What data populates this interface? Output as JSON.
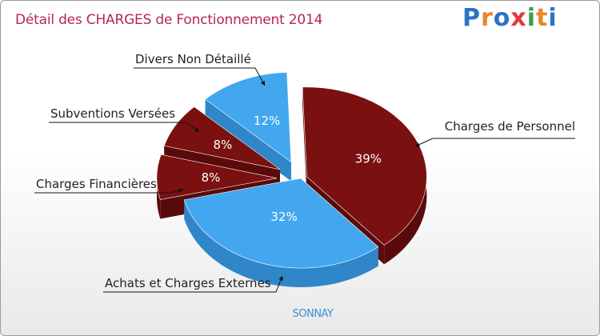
{
  "title": "Détail des CHARGES de Fonctionnement 2014",
  "logo": {
    "text": "Proxiti",
    "letters": [
      {
        "ch": "P",
        "color": "#2a73c9"
      },
      {
        "ch": "r",
        "color": "#e8862a"
      },
      {
        "ch": "o",
        "color": "#2a73c9"
      },
      {
        "ch": "x",
        "color": "#e03a3a"
      },
      {
        "ch": "i",
        "color": "#3aa04a"
      },
      {
        "ch": "t",
        "color": "#e8862a"
      },
      {
        "ch": "i",
        "color": "#2a73c9"
      }
    ]
  },
  "commune": "SONNAY",
  "chart_data": {
    "type": "pie",
    "title": "Détail des CHARGES de Fonctionnement 2014",
    "unit": "%",
    "slices": [
      {
        "label": "Charges de Personnel",
        "value": 39,
        "color": "#7a1010",
        "side": "#5a0a0a",
        "exploded": false,
        "pct_color": "#ffffff"
      },
      {
        "label": "Achats et Charges Externes",
        "value": 32,
        "color": "#42a7ee",
        "side": "#2f86c9",
        "exploded": false,
        "pct_color": "#ffffff"
      },
      {
        "label": "Charges Financières",
        "value": 8,
        "color": "#7a1010",
        "side": "#5a0a0a",
        "exploded": true,
        "pct_color": "#ffffff"
      },
      {
        "label": "Subventions Versées",
        "value": 8,
        "color": "#7a1010",
        "side": "#5a0a0a",
        "exploded": true,
        "pct_color": "#ffffff"
      },
      {
        "label": "Divers Non Détaillé",
        "value": 12,
        "color": "#42a7ee",
        "side": "#2f86c9",
        "exploded": true,
        "pct_color": "#ffffff"
      }
    ]
  }
}
